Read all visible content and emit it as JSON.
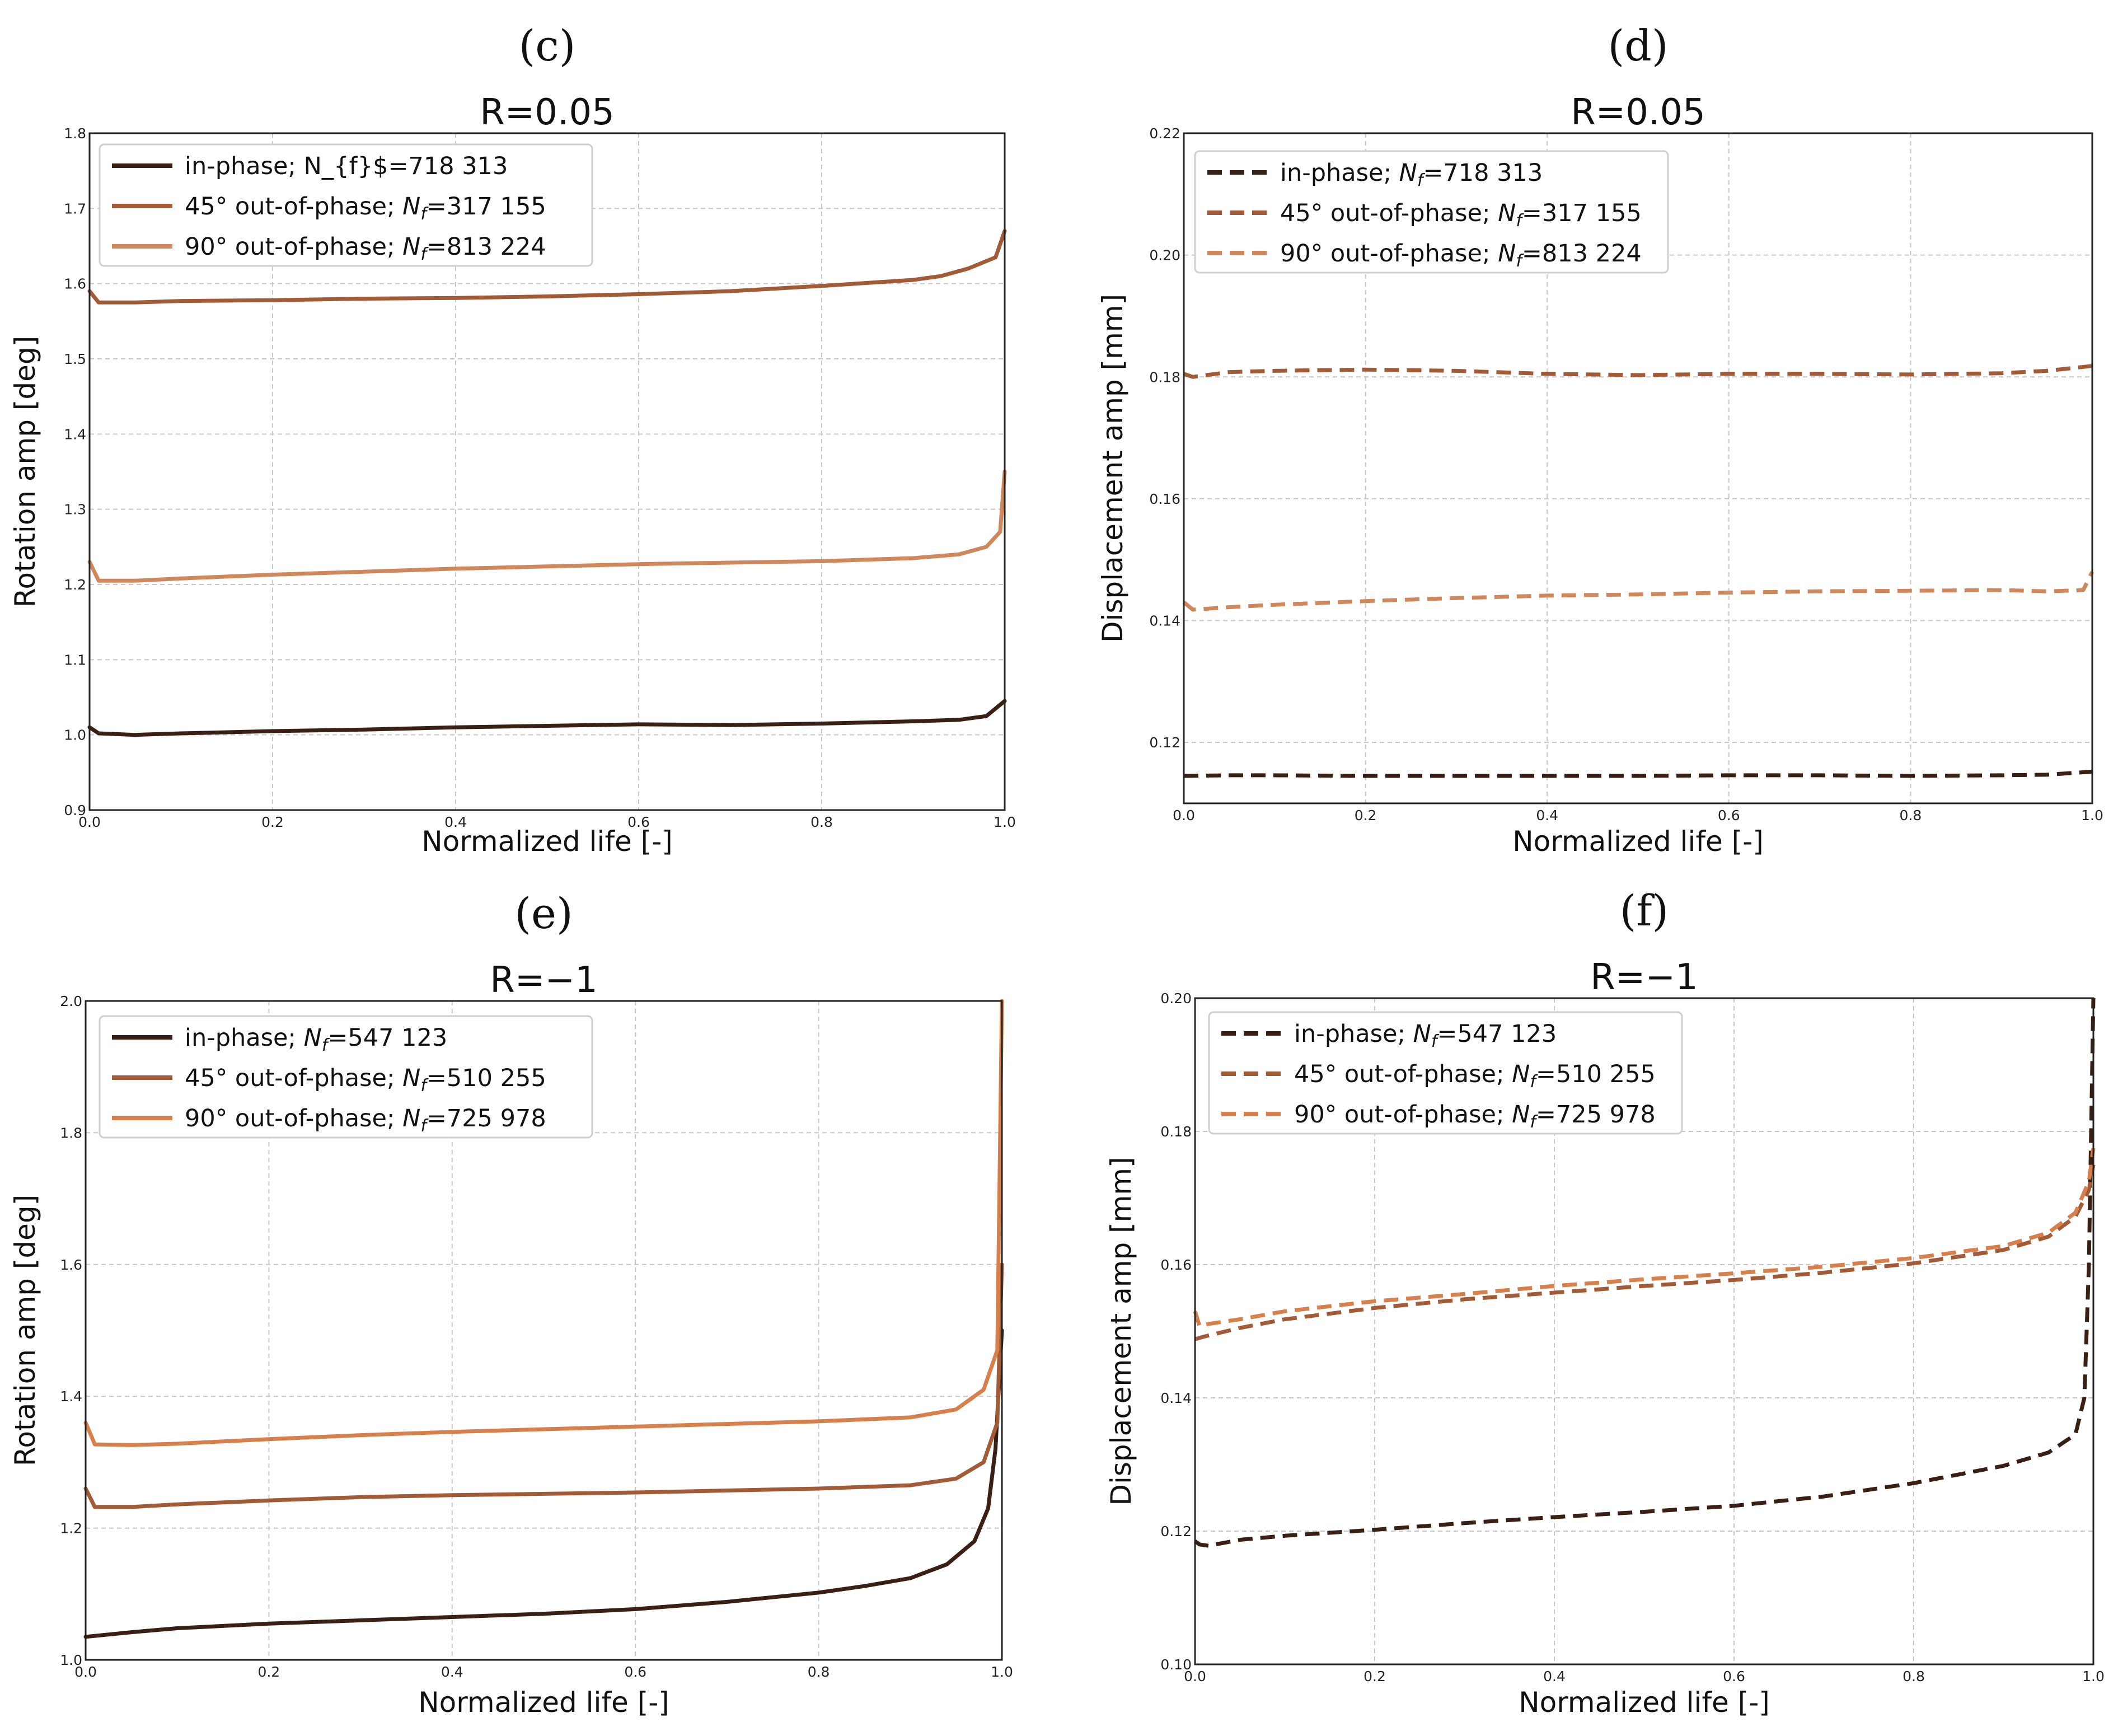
{
  "chart_data": [
    {
      "panel": "(c)",
      "type": "line",
      "title": "R=0.05",
      "xlabel": "Normalized life [-]",
      "ylabel": "Rotation amp [deg]",
      "xlim": [
        0.0,
        1.0
      ],
      "ylim": [
        0.9,
        1.8
      ],
      "xticks": [
        "0.0",
        "0.2",
        "0.4",
        "0.6",
        "0.8",
        "1.0"
      ],
      "yticks": [
        "0.9",
        "1.0",
        "1.1",
        "1.2",
        "1.3",
        "1.4",
        "1.5",
        "1.6",
        "1.7",
        "1.8"
      ],
      "grid": true,
      "legend_position": "top-left",
      "line_style": "solid",
      "series": [
        {
          "name": "in-phase; N_{f}$=718 313",
          "color": "#3a1f14",
          "x": [
            0.0,
            0.01,
            0.05,
            0.1,
            0.2,
            0.3,
            0.4,
            0.5,
            0.6,
            0.7,
            0.8,
            0.9,
            0.95,
            0.98,
            1.0
          ],
          "y": [
            1.01,
            1.002,
            1.0,
            1.002,
            1.005,
            1.007,
            1.01,
            1.012,
            1.014,
            1.013,
            1.015,
            1.018,
            1.02,
            1.025,
            1.045
          ]
        },
        {
          "name": "45° out-of-phase; Nf=317 155",
          "color": "#a35a37",
          "x": [
            0.0,
            0.01,
            0.05,
            0.1,
            0.2,
            0.3,
            0.4,
            0.5,
            0.6,
            0.7,
            0.8,
            0.9,
            0.93,
            0.96,
            0.99,
            1.0
          ],
          "y": [
            1.59,
            1.575,
            1.575,
            1.577,
            1.578,
            1.58,
            1.581,
            1.583,
            1.586,
            1.59,
            1.597,
            1.605,
            1.61,
            1.62,
            1.635,
            1.67
          ]
        },
        {
          "name": "90° out-of-phase; Nf=813 224",
          "color": "#d1875c",
          "x": [
            0.0,
            0.01,
            0.05,
            0.1,
            0.2,
            0.3,
            0.4,
            0.5,
            0.6,
            0.7,
            0.8,
            0.9,
            0.95,
            0.98,
            0.995,
            1.0
          ],
          "y": [
            1.23,
            1.205,
            1.205,
            1.208,
            1.213,
            1.217,
            1.221,
            1.224,
            1.227,
            1.229,
            1.231,
            1.235,
            1.24,
            1.25,
            1.27,
            1.35
          ]
        }
      ]
    },
    {
      "panel": "(d)",
      "type": "line",
      "title": "R=0.05",
      "xlabel": "Normalized life [-]",
      "ylabel": "Displacement amp [mm]",
      "xlim": [
        0.0,
        1.0
      ],
      "ylim": [
        0.11,
        0.22
      ],
      "xticks": [
        "0.0",
        "0.2",
        "0.4",
        "0.6",
        "0.8",
        "1.0"
      ],
      "yticks": [
        "0.12",
        "0.14",
        "0.16",
        "0.18",
        "0.20",
        "0.22"
      ],
      "grid": true,
      "legend_position": "top-left",
      "line_style": "dashed",
      "series": [
        {
          "name": "in-phase; Nf=718 313",
          "color": "#3a1f14",
          "x": [
            0.0,
            0.05,
            0.1,
            0.2,
            0.3,
            0.4,
            0.5,
            0.6,
            0.7,
            0.8,
            0.9,
            0.95,
            1.0
          ],
          "y": [
            0.1145,
            0.1146,
            0.1146,
            0.1145,
            0.1145,
            0.1145,
            0.1145,
            0.1146,
            0.1146,
            0.1145,
            0.1146,
            0.1147,
            0.1152
          ]
        },
        {
          "name": "45° out-of-phase; Nf=317 155",
          "color": "#a35a37",
          "x": [
            0.0,
            0.01,
            0.05,
            0.1,
            0.2,
            0.3,
            0.4,
            0.5,
            0.6,
            0.7,
            0.8,
            0.9,
            0.95,
            1.0
          ],
          "y": [
            0.1805,
            0.18,
            0.1808,
            0.181,
            0.1812,
            0.181,
            0.1805,
            0.1803,
            0.1805,
            0.1805,
            0.1804,
            0.1806,
            0.181,
            0.1818
          ]
        },
        {
          "name": "90° out-of-phase; Nf=813 224",
          "color": "#d1875c",
          "x": [
            0.0,
            0.01,
            0.05,
            0.1,
            0.2,
            0.3,
            0.4,
            0.5,
            0.6,
            0.7,
            0.8,
            0.9,
            0.95,
            0.99,
            1.0
          ],
          "y": [
            0.143,
            0.1418,
            0.1422,
            0.1426,
            0.1432,
            0.1437,
            0.1441,
            0.1443,
            0.1446,
            0.1448,
            0.1449,
            0.145,
            0.1448,
            0.145,
            0.148
          ]
        }
      ]
    },
    {
      "panel": "(e)",
      "type": "line",
      "title": "R=−1",
      "xlabel": "Normalized life [-]",
      "ylabel": "Rotation amp [deg]",
      "xlim": [
        0.0,
        1.0
      ],
      "ylim": [
        1.0,
        2.0
      ],
      "xticks": [
        "0.0",
        "0.2",
        "0.4",
        "0.6",
        "0.8",
        "1.0"
      ],
      "yticks": [
        "1.0",
        "1.2",
        "1.4",
        "1.6",
        "1.8",
        "2.0"
      ],
      "grid": true,
      "legend_position": "top-left",
      "line_style": "solid",
      "series": [
        {
          "name": "in-phase; Nf=547 123",
          "color": "#3a1f14",
          "x": [
            0.0,
            0.05,
            0.1,
            0.2,
            0.3,
            0.4,
            0.5,
            0.6,
            0.7,
            0.8,
            0.85,
            0.9,
            0.94,
            0.97,
            0.985,
            0.993,
            1.0
          ],
          "y": [
            1.035,
            1.042,
            1.048,
            1.055,
            1.06,
            1.065,
            1.07,
            1.077,
            1.088,
            1.102,
            1.112,
            1.124,
            1.145,
            1.18,
            1.23,
            1.32,
            1.5
          ]
        },
        {
          "name": "45° out-of-phase; Nf=510 255",
          "color": "#a35a37",
          "x": [
            0.0,
            0.01,
            0.05,
            0.1,
            0.2,
            0.3,
            0.4,
            0.5,
            0.6,
            0.7,
            0.8,
            0.9,
            0.95,
            0.98,
            0.995,
            1.0
          ],
          "y": [
            1.26,
            1.232,
            1.232,
            1.236,
            1.242,
            1.247,
            1.25,
            1.252,
            1.254,
            1.257,
            1.26,
            1.265,
            1.275,
            1.3,
            1.36,
            1.6
          ]
        },
        {
          "name": "90° out-of-phase; Nf=725 978",
          "color": "#d8804c",
          "x": [
            0.0,
            0.01,
            0.05,
            0.1,
            0.2,
            0.3,
            0.4,
            0.5,
            0.6,
            0.7,
            0.8,
            0.9,
            0.95,
            0.98,
            0.995,
            1.0
          ],
          "y": [
            1.36,
            1.327,
            1.326,
            1.328,
            1.335,
            1.341,
            1.346,
            1.35,
            1.354,
            1.358,
            1.362,
            1.368,
            1.38,
            1.41,
            1.47,
            2.0
          ]
        }
      ]
    },
    {
      "panel": "(f)",
      "type": "line",
      "title": "R=−1",
      "xlabel": "Normalized life [-]",
      "ylabel": "Displacement amp [mm]",
      "xlim": [
        0.0,
        1.0
      ],
      "ylim": [
        0.1,
        0.2
      ],
      "xticks": [
        "0.0",
        "0.2",
        "0.4",
        "0.6",
        "0.8",
        "1.0"
      ],
      "yticks": [
        "0.10",
        "0.12",
        "0.14",
        "0.16",
        "0.18",
        "0.20"
      ],
      "grid": true,
      "legend_position": "top-left",
      "line_style": "dashed",
      "series": [
        {
          "name": "in-phase; Nf=547 123",
          "color": "#3a1f14",
          "x": [
            0.0,
            0.005,
            0.015,
            0.05,
            0.1,
            0.2,
            0.3,
            0.4,
            0.5,
            0.6,
            0.7,
            0.8,
            0.9,
            0.95,
            0.98,
            0.99,
            0.995,
            1.0
          ],
          "y": [
            0.1185,
            0.118,
            0.1178,
            0.1187,
            0.1193,
            0.1202,
            0.1212,
            0.1221,
            0.1229,
            0.1238,
            0.1252,
            0.1272,
            0.1298,
            0.1318,
            0.1345,
            0.14,
            0.16,
            0.2
          ]
        },
        {
          "name": "45° out-of-phase; Nf=510 255",
          "color": "#a35a37",
          "x": [
            0.0,
            0.01,
            0.05,
            0.1,
            0.2,
            0.3,
            0.4,
            0.5,
            0.6,
            0.7,
            0.8,
            0.9,
            0.95,
            0.98,
            0.995,
            1.0
          ],
          "y": [
            0.1488,
            0.1492,
            0.1505,
            0.1518,
            0.1535,
            0.1548,
            0.1558,
            0.1568,
            0.1577,
            0.1588,
            0.1602,
            0.1622,
            0.1642,
            0.1672,
            0.1712,
            0.175
          ]
        },
        {
          "name": "90° out-of-phase; Nf=725 978",
          "color": "#d8804c",
          "x": [
            0.0,
            0.005,
            0.01,
            0.05,
            0.1,
            0.2,
            0.3,
            0.4,
            0.5,
            0.6,
            0.7,
            0.8,
            0.9,
            0.95,
            0.98,
            0.995,
            1.0
          ],
          "y": [
            0.153,
            0.1508,
            0.151,
            0.1518,
            0.153,
            0.1545,
            0.1556,
            0.1568,
            0.1578,
            0.1587,
            0.1597,
            0.161,
            0.1628,
            0.1648,
            0.1678,
            0.1725,
            0.1775
          ]
        }
      ]
    }
  ]
}
